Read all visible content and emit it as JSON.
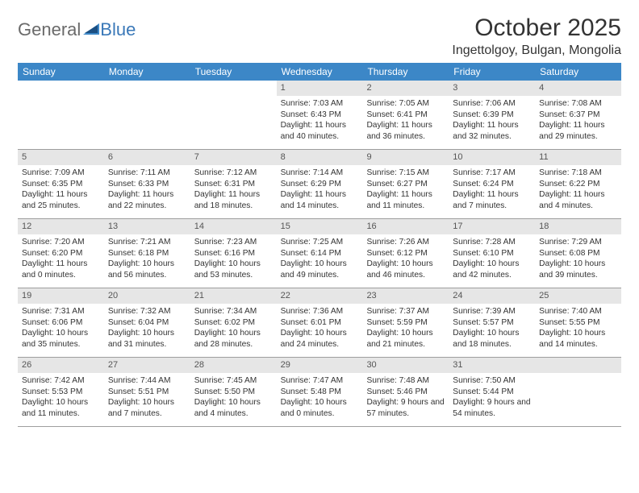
{
  "logo": {
    "general": "General",
    "blue": "Blue",
    "tri_color": "#3c87c7",
    "text_gray": "#6a6a6a",
    "text_blue": "#3a78b8"
  },
  "title": {
    "month": "October 2025",
    "location": "Ingettolgoy, Bulgan, Mongolia"
  },
  "colors": {
    "header_bg": "#3c87c7",
    "header_text": "#ffffff",
    "daynum_bg": "#e6e6e6",
    "daynum_text": "#555555",
    "body_text": "#333333",
    "row_border": "#9e9e9e"
  },
  "dayHeaders": [
    "Sunday",
    "Monday",
    "Tuesday",
    "Wednesday",
    "Thursday",
    "Friday",
    "Saturday"
  ],
  "weeks": [
    [
      null,
      null,
      null,
      {
        "n": "1",
        "sr": "7:03 AM",
        "ss": "6:43 PM",
        "dl": "11 hours and 40 minutes."
      },
      {
        "n": "2",
        "sr": "7:05 AM",
        "ss": "6:41 PM",
        "dl": "11 hours and 36 minutes."
      },
      {
        "n": "3",
        "sr": "7:06 AM",
        "ss": "6:39 PM",
        "dl": "11 hours and 32 minutes."
      },
      {
        "n": "4",
        "sr": "7:08 AM",
        "ss": "6:37 PM",
        "dl": "11 hours and 29 minutes."
      }
    ],
    [
      {
        "n": "5",
        "sr": "7:09 AM",
        "ss": "6:35 PM",
        "dl": "11 hours and 25 minutes."
      },
      {
        "n": "6",
        "sr": "7:11 AM",
        "ss": "6:33 PM",
        "dl": "11 hours and 22 minutes."
      },
      {
        "n": "7",
        "sr": "7:12 AM",
        "ss": "6:31 PM",
        "dl": "11 hours and 18 minutes."
      },
      {
        "n": "8",
        "sr": "7:14 AM",
        "ss": "6:29 PM",
        "dl": "11 hours and 14 minutes."
      },
      {
        "n": "9",
        "sr": "7:15 AM",
        "ss": "6:27 PM",
        "dl": "11 hours and 11 minutes."
      },
      {
        "n": "10",
        "sr": "7:17 AM",
        "ss": "6:24 PM",
        "dl": "11 hours and 7 minutes."
      },
      {
        "n": "11",
        "sr": "7:18 AM",
        "ss": "6:22 PM",
        "dl": "11 hours and 4 minutes."
      }
    ],
    [
      {
        "n": "12",
        "sr": "7:20 AM",
        "ss": "6:20 PM",
        "dl": "11 hours and 0 minutes."
      },
      {
        "n": "13",
        "sr": "7:21 AM",
        "ss": "6:18 PM",
        "dl": "10 hours and 56 minutes."
      },
      {
        "n": "14",
        "sr": "7:23 AM",
        "ss": "6:16 PM",
        "dl": "10 hours and 53 minutes."
      },
      {
        "n": "15",
        "sr": "7:25 AM",
        "ss": "6:14 PM",
        "dl": "10 hours and 49 minutes."
      },
      {
        "n": "16",
        "sr": "7:26 AM",
        "ss": "6:12 PM",
        "dl": "10 hours and 46 minutes."
      },
      {
        "n": "17",
        "sr": "7:28 AM",
        "ss": "6:10 PM",
        "dl": "10 hours and 42 minutes."
      },
      {
        "n": "18",
        "sr": "7:29 AM",
        "ss": "6:08 PM",
        "dl": "10 hours and 39 minutes."
      }
    ],
    [
      {
        "n": "19",
        "sr": "7:31 AM",
        "ss": "6:06 PM",
        "dl": "10 hours and 35 minutes."
      },
      {
        "n": "20",
        "sr": "7:32 AM",
        "ss": "6:04 PM",
        "dl": "10 hours and 31 minutes."
      },
      {
        "n": "21",
        "sr": "7:34 AM",
        "ss": "6:02 PM",
        "dl": "10 hours and 28 minutes."
      },
      {
        "n": "22",
        "sr": "7:36 AM",
        "ss": "6:01 PM",
        "dl": "10 hours and 24 minutes."
      },
      {
        "n": "23",
        "sr": "7:37 AM",
        "ss": "5:59 PM",
        "dl": "10 hours and 21 minutes."
      },
      {
        "n": "24",
        "sr": "7:39 AM",
        "ss": "5:57 PM",
        "dl": "10 hours and 18 minutes."
      },
      {
        "n": "25",
        "sr": "7:40 AM",
        "ss": "5:55 PM",
        "dl": "10 hours and 14 minutes."
      }
    ],
    [
      {
        "n": "26",
        "sr": "7:42 AM",
        "ss": "5:53 PM",
        "dl": "10 hours and 11 minutes."
      },
      {
        "n": "27",
        "sr": "7:44 AM",
        "ss": "5:51 PM",
        "dl": "10 hours and 7 minutes."
      },
      {
        "n": "28",
        "sr": "7:45 AM",
        "ss": "5:50 PM",
        "dl": "10 hours and 4 minutes."
      },
      {
        "n": "29",
        "sr": "7:47 AM",
        "ss": "5:48 PM",
        "dl": "10 hours and 0 minutes."
      },
      {
        "n": "30",
        "sr": "7:48 AM",
        "ss": "5:46 PM",
        "dl": "9 hours and 57 minutes."
      },
      {
        "n": "31",
        "sr": "7:50 AM",
        "ss": "5:44 PM",
        "dl": "9 hours and 54 minutes."
      },
      null
    ]
  ],
  "labels": {
    "sunrise": "Sunrise: ",
    "sunset": "Sunset: ",
    "daylight": "Daylight: "
  }
}
